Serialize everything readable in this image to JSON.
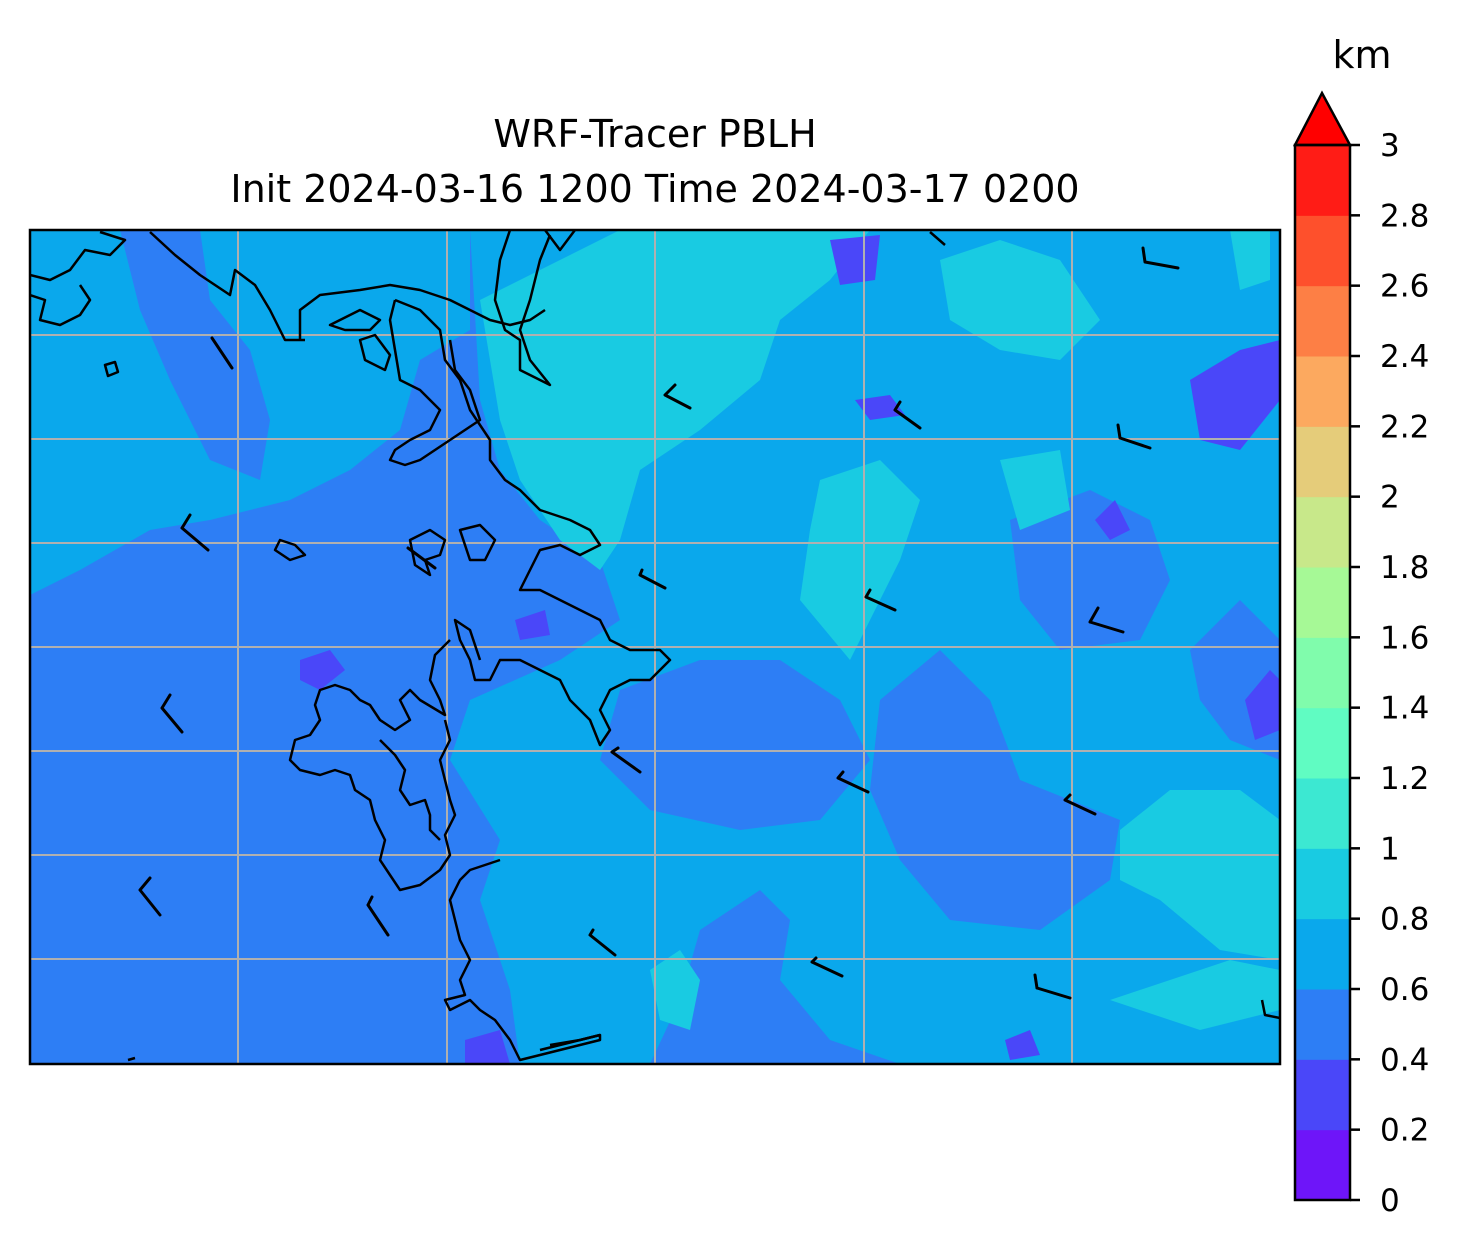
{
  "map": {
    "title_line1": "WRF-Tracer PBLH",
    "title_line2": "Init 2024-03-16 1200 Time 2024-03-17 0200",
    "colorbar": {
      "unit": "km",
      "extend": "max",
      "levels": [
        0,
        0.2,
        0.4,
        0.6,
        0.8,
        1.0,
        1.2,
        1.4,
        1.6,
        1.8,
        2.0,
        2.2,
        2.4,
        2.6,
        2.8,
        3.0
      ],
      "tick_labels": [
        "0",
        "0.2",
        "0.4",
        "0.6",
        "0.8",
        "1",
        "1.2",
        "1.4",
        "1.6",
        "1.8",
        "2",
        "2.2",
        "2.4",
        "2.6",
        "2.8",
        "3"
      ],
      "colors": [
        "#6e15f9",
        "#4a47f9",
        "#2d7ef5",
        "#0aa8ec",
        "#19cbe2",
        "#3ce8d2",
        "#60fcc2",
        "#80fcac",
        "#a6f996",
        "#c8e88a",
        "#e5cc7a",
        "#fca95f",
        "#fd7f45",
        "#fe502c",
        "#ff1c16"
      ],
      "over_color": "#ff0000"
    },
    "field_colors": {
      "level_0_2_0_4": "#4a47f9",
      "level_0_4_0_6": "#2d7ef5",
      "level_0_6_0_8": "#0aa8ec",
      "level_0_8_1_0": "#19cbe2"
    },
    "gridline_color": "#b0b0b0",
    "coastline_color": "#000000"
  }
}
